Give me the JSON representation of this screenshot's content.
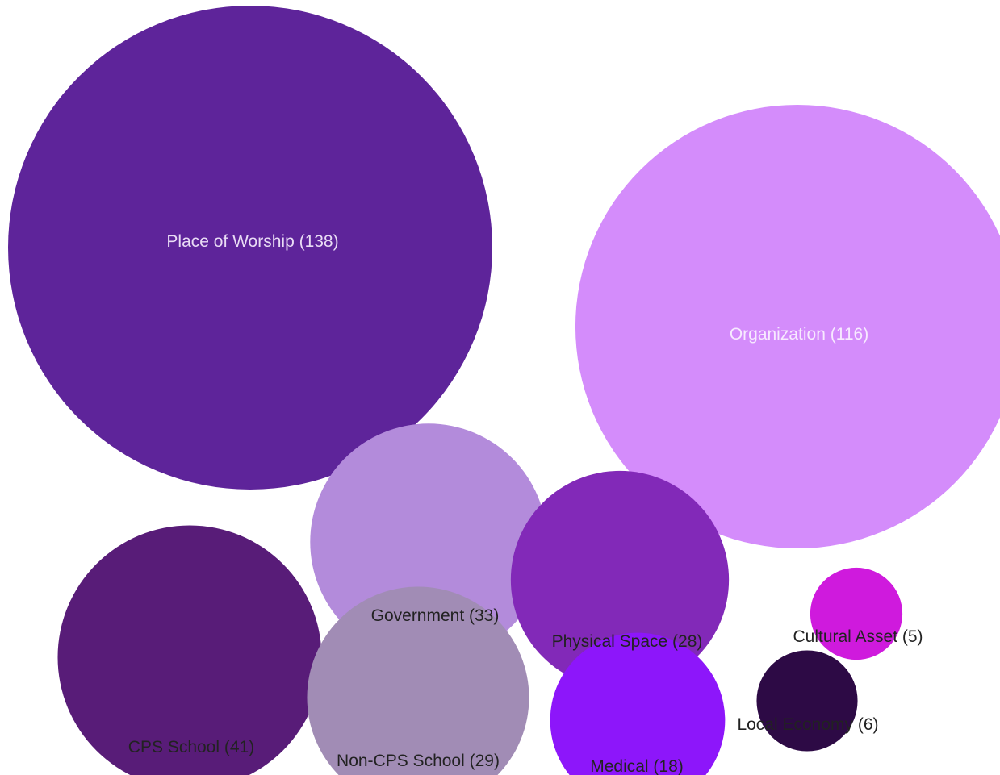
{
  "chart_data": {
    "type": "bubble",
    "categories": [
      "Place of Worship",
      "Organization",
      "CPS School",
      "Government",
      "Non-CPS School",
      "Physical Space",
      "Medical",
      "Local Economy",
      "Cultural Asset"
    ],
    "values": [
      138,
      116,
      41,
      33,
      29,
      28,
      18,
      6,
      5
    ],
    "labels": [
      "Place of Worship (138)",
      "Organization (116)",
      "CPS School (41)",
      "Government (33)",
      "Non-CPS School (29)",
      "Physical Space (28)",
      "Medical (18)",
      "Local Economy (6)",
      "Cultural Asset (5)"
    ],
    "colors": [
      "#5e249a",
      "#d48cfb",
      "#581c78",
      "#b38bdb",
      "#a18cb5",
      "#8229b8",
      "#8d16fa",
      "#2d0a45",
      "#cf1add"
    ],
    "label_colors": [
      "#e9dcf5",
      "#f7eaff",
      "#222222",
      "#222222",
      "#222222",
      "#222222",
      "#222222",
      "#222222",
      "#222222"
    ],
    "label_positions": [
      "inside",
      "inside",
      "below",
      "below",
      "below",
      "below",
      "below",
      "below",
      "below"
    ]
  }
}
